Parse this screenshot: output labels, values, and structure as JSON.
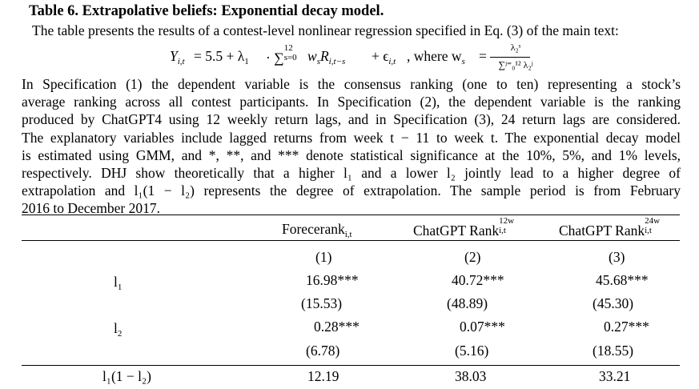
{
  "table": {
    "title": "Table 6. Extrapolative beliefs: Exponential decay model.",
    "caption_intro": "The table presents the results of a contest-level nonlinear regression specified in Eq. (3) of the main text:",
    "equation": {
      "lhs": "Y",
      "lhs_sub": "i,t",
      "rhs": "= 5.5 + λ",
      "rhs_sub": "1",
      "sum_part": "· ∑",
      "sum_sub": "s=0",
      "sum_sup": "12",
      "tail": "w",
      "tail_sub": "s",
      "r_part": "R",
      "r_sub": "i,t−s",
      "eps_part": "+ ϵ",
      "eps_sub": "i,t",
      "where": ",   where  w",
      "where_sub": "s",
      "eq": "=",
      "frac_num": "λ₂ˢ",
      "frac_den": "∑ʲ⁼₀¹² λ₂ʲ"
    },
    "paragraph_lines": [
      "In Specification (1) the dependent variable is the consensus ranking (one to ten) representing a stock’s",
      "average ranking across all contest participants. In Specification (2), the dependent variable is the ranking",
      "produced by ChatGPT4 using 12 weekly return lags, and in Specification (3), 24 return lags are considered.",
      "The explanatory variables include lagged returns from week t − 11 to week t. The exponential decay model",
      "is estimated using GMM, and *, **, and *** denote statistical significance at the 10%, 5%, and 1% levels,",
      "respectively. DHJ show theoretically that a higher l₁ and a lower l₂ jointly lead to a higher degree of",
      "extrapolation and l₁(1 − l₂) represents the degree of extrapolation. The sample period is from February",
      "2016 to December 2017."
    ],
    "columns": [
      {
        "label": "Forecerank",
        "sub": "i,t",
        "sup": ""
      },
      {
        "label": "ChatGPT Rank",
        "sub": "i,t",
        "sup": "12w"
      },
      {
        "label": "ChatGPT Rank",
        "sub": "i,t",
        "sup": "24w"
      }
    ],
    "spec_numbers": [
      "(1)",
      "(2)",
      "(3)"
    ],
    "rows": [
      {
        "label": "l",
        "label_sub": "1",
        "values": [
          "16.98***",
          "40.72***",
          "45.68***"
        ],
        "tstats": [
          "(15.53)",
          "(48.89)",
          "(45.30)"
        ]
      },
      {
        "label": "l",
        "label_sub": "2",
        "values": [
          "0.28***",
          "0.07***",
          "0.27***"
        ],
        "tstats": [
          "(6.78)",
          "(5.16)",
          "(18.55)"
        ]
      },
      {
        "label": "l₁(1 − l₂)",
        "label_sub": "",
        "values": [
          "12.19",
          "38.03",
          "33.21"
        ],
        "tstats": []
      }
    ]
  }
}
